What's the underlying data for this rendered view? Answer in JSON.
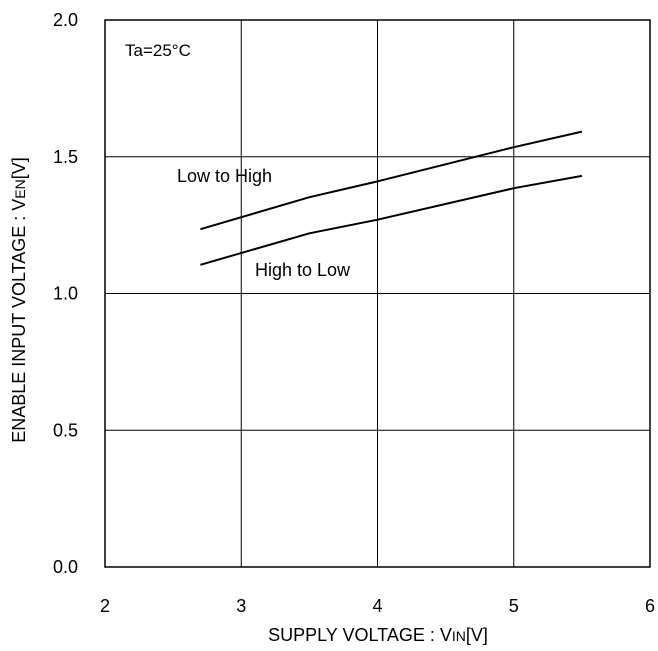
{
  "chart_data": {
    "type": "line",
    "xlabel": "SUPPLY VOLTAGE : VIN[V]",
    "xlabel_parts": {
      "main": "SUPPLY VOLTAGE : V",
      "sub": "IN",
      "unit": "[V]"
    },
    "ylabel": "ENABLE INPUT VOLTAGE : VEN[V]",
    "ylabel_parts": {
      "main": "ENABLE INPUT VOLTAGE : V",
      "sub": "EN",
      "unit": "[V]"
    },
    "xlim": [
      2,
      6
    ],
    "ylim": [
      0.0,
      2.0
    ],
    "x_ticks": [
      "2",
      "3",
      "4",
      "5",
      "6"
    ],
    "y_ticks": [
      "0.0",
      "0.5",
      "1.0",
      "1.5",
      "2.0"
    ],
    "grid": true,
    "annotations": [
      {
        "text": "Ta=25°C"
      }
    ],
    "series": [
      {
        "name": "Low to High",
        "x": [
          2.7,
          3.5,
          4.0,
          5.0,
          5.5
        ],
        "y": [
          1.235,
          1.352,
          1.41,
          1.535,
          1.592
        ]
      },
      {
        "name": "High to Low",
        "x": [
          2.7,
          3.5,
          4.0,
          5.0,
          5.5
        ],
        "y": [
          1.105,
          1.22,
          1.27,
          1.385,
          1.43
        ]
      }
    ]
  }
}
